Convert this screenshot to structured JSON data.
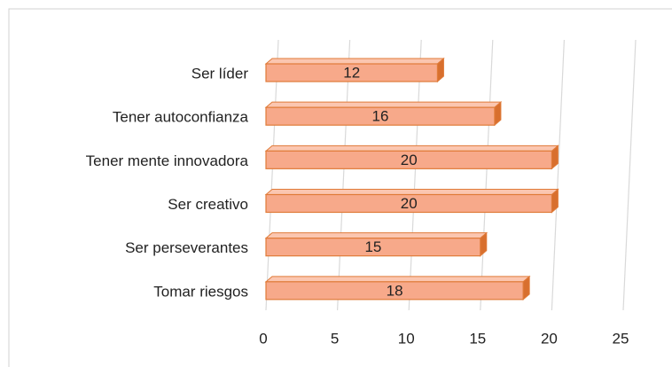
{
  "chart_data": {
    "type": "bar",
    "orientation": "horizontal",
    "categories": [
      "Ser líder",
      "Tener autoconfianza",
      "Tener mente innovadora",
      "Ser creativo",
      "Ser perseverantes",
      "Tomar riesgos"
    ],
    "values": [
      12,
      16,
      20,
      20,
      15,
      18
    ],
    "color": "#f7a98a",
    "edge_color": "#e07b39",
    "xlim": [
      0,
      25
    ],
    "xticks": [
      0,
      5,
      10,
      15,
      20,
      25
    ],
    "grid": true
  }
}
